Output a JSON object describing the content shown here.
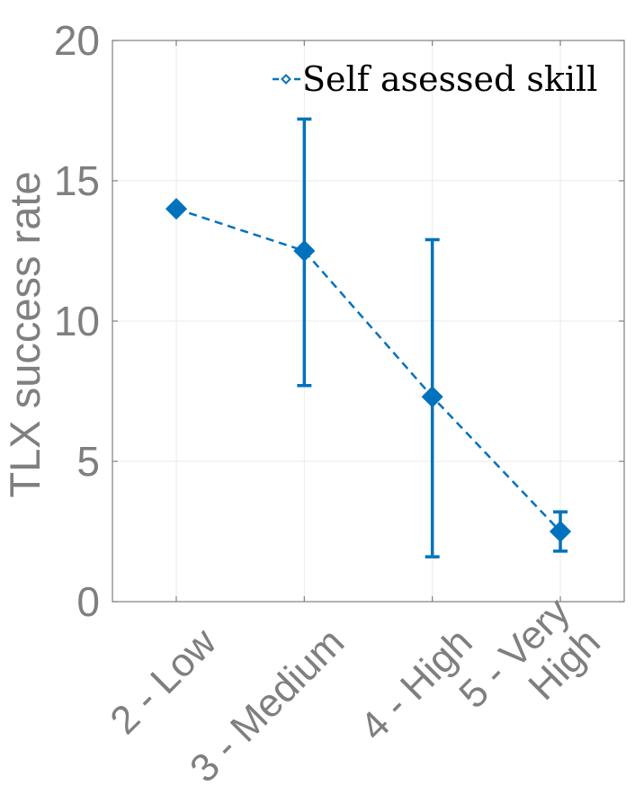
{
  "chart_data": {
    "type": "line",
    "ylabel": "TLX success rate",
    "xlabel": "",
    "ylim": [
      0,
      20
    ],
    "yticks": [
      0,
      5,
      10,
      15,
      20
    ],
    "grid": true,
    "legend_position": "top-right",
    "categories": [
      "2 - Low",
      "3 - Medium",
      "4 - High",
      "5 - Very High"
    ],
    "category_lines": [
      [
        "2 - Low"
      ],
      [
        "3 - Medium"
      ],
      [
        "4 - High"
      ],
      [
        "5 - Very",
        "High"
      ]
    ],
    "series": [
      {
        "name": "Self asessed skill",
        "values": [
          14.0,
          12.5,
          7.3,
          2.5
        ],
        "error_low": [
          14.0,
          7.7,
          1.6,
          1.8
        ],
        "error_high": [
          14.0,
          17.2,
          12.9,
          3.2
        ],
        "color": "#0072bd",
        "line_style": "dashed",
        "marker": "diamond"
      }
    ]
  }
}
